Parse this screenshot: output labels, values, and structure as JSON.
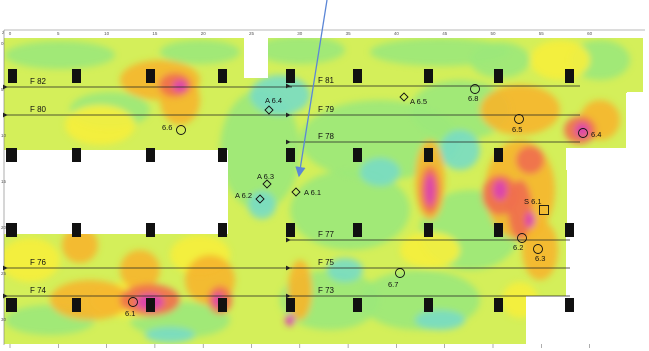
{
  "axes": {
    "top_ticks": [
      "0",
      "5",
      "10",
      "15",
      "20",
      "25",
      "30",
      "35",
      "40",
      "45",
      "50",
      "55",
      "60"
    ],
    "left_ticks": [
      "0",
      "5",
      "10",
      "15",
      "20",
      "25",
      "30"
    ],
    "corner": "z"
  },
  "flights": [
    {
      "label": "F 82"
    },
    {
      "label": "F 81"
    },
    {
      "label": "F 80"
    },
    {
      "label": "F 79"
    },
    {
      "label": "F 78"
    },
    {
      "label": "F 77"
    },
    {
      "label": "F 76"
    },
    {
      "label": "F 75"
    },
    {
      "label": "F 74"
    },
    {
      "label": "F 73"
    }
  ],
  "markers": [
    {
      "type": "diamond",
      "label": "A 6.4"
    },
    {
      "type": "diamond",
      "label": "A 6.5"
    },
    {
      "type": "diamond",
      "label": "A 6.3"
    },
    {
      "type": "diamond",
      "label": "A 6.2"
    },
    {
      "type": "diamond",
      "label": "A 6.1"
    },
    {
      "type": "circle",
      "label": "6.8"
    },
    {
      "type": "circle",
      "label": "6.6"
    },
    {
      "type": "circle",
      "label": "6.5"
    },
    {
      "type": "circle",
      "label": "6.4"
    },
    {
      "type": "square",
      "label": "S 6.1"
    },
    {
      "type": "circle",
      "label": "6.2"
    },
    {
      "type": "circle",
      "label": "6.3"
    },
    {
      "type": "circle",
      "label": "6.7"
    },
    {
      "type": "circle",
      "label": "6.1"
    }
  ],
  "colors": {
    "green": "#9be87a",
    "lime": "#d4ef5a",
    "yellow": "#f6ee3c",
    "orange": "#f6b52c",
    "red": "#ef6e4e",
    "magenta": "#d93fb6",
    "cyan": "#78dcc4",
    "column": "#111111",
    "line": "#222222",
    "pointer": "#5b86d6"
  }
}
